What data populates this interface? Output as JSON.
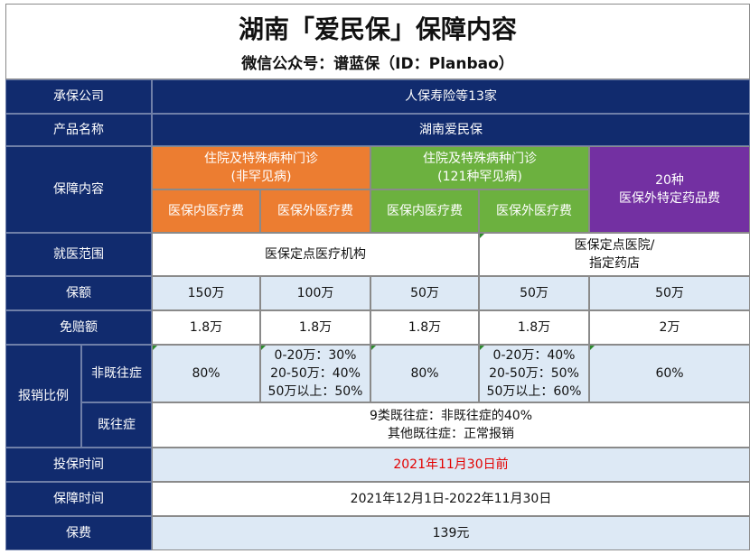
{
  "title": "湖南「爱民保」保障内容",
  "subtitle": "微信公众号：谱蓝保（ID：Planbao）",
  "rows": {
    "insurer": {
      "label": "承保公司",
      "value": "人保寿险等13家"
    },
    "product": {
      "label": "产品名称",
      "value": "湖南爱民保"
    },
    "coverage": {
      "label": "保障内容",
      "group1": "住院及特殊病种门诊\n(非罕见病)",
      "group2": "住院及特殊病种门诊\n(121种罕见病)",
      "group3": "20种\n医保外特定药品费",
      "in_medical": "医保内医疗费",
      "out_medical": "医保外医疗费"
    },
    "scope": {
      "label": "就医范围",
      "value1": "医保定点医疗机构",
      "value2": "医保定点医院/\n指定药店"
    },
    "amount": {
      "label": "保额",
      "values": [
        "150万",
        "100万",
        "50万",
        "50万",
        "50万"
      ]
    },
    "deductible": {
      "label": "免赔额",
      "values": [
        "1.8万",
        "1.8万",
        "1.8万",
        "1.8万",
        "2万"
      ]
    },
    "reimbursement": {
      "label": "报销比例",
      "non_pre": {
        "label": "非既往症",
        "values": [
          "80%",
          "0-20万：30%\n20-50万：40%\n50万以上：50%",
          "80%",
          "0-20万：40%\n20-50万：50%\n50万以上：60%",
          "60%"
        ]
      },
      "pre": {
        "label": "既往症",
        "value": "9类既往症：非既往症的40%\n其他既往症：正常报销"
      }
    },
    "enroll_time": {
      "label": "投保时间",
      "value": "2021年11月30日前"
    },
    "period": {
      "label": "保障时间",
      "value": "2021年12月1日-2022年11月30日"
    },
    "premium": {
      "label": "保费",
      "value": "139元"
    }
  },
  "colors": {
    "header": "#112b6e",
    "light_blue": "#dde9f5",
    "orange": "#ec7d31",
    "green": "#6cb13f",
    "purple": "#7330a2",
    "red_text": "#e30000"
  }
}
